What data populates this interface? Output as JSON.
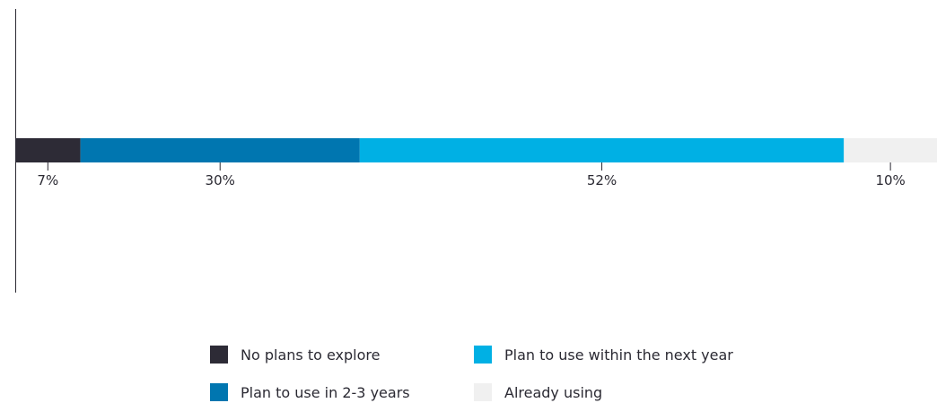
{
  "chart_data": {
    "type": "bar",
    "orientation": "horizontal",
    "stacked": true,
    "categories": [
      ""
    ],
    "series": [
      {
        "name": "No plans to explore",
        "values": [
          7
        ],
        "label": "7%",
        "color": "#2d2b36"
      },
      {
        "name": "Plan to use in 2-3 years",
        "values": [
          30
        ],
        "label": "30%",
        "color": "#0076b0"
      },
      {
        "name": "Plan to use within the next year",
        "values": [
          52
        ],
        "label": "52%",
        "color": "#00b0e4"
      },
      {
        "name": "Already using",
        "values": [
          10
        ],
        "label": "10%",
        "color": "#f0f0f0"
      }
    ],
    "title": "",
    "xlabel": "",
    "ylabel": "",
    "xlim": [
      0,
      99
    ],
    "grid": false,
    "legend_position": "bottom"
  },
  "legend": {
    "items": [
      {
        "label": "No plans to explore",
        "color": "#2d2b36"
      },
      {
        "label": "Plan to use within the next year",
        "color": "#00b0e4"
      },
      {
        "label": "Plan to use in 2-3 years",
        "color": "#0076b0"
      },
      {
        "label": "Already using",
        "color": "#f0f0f0"
      }
    ]
  }
}
